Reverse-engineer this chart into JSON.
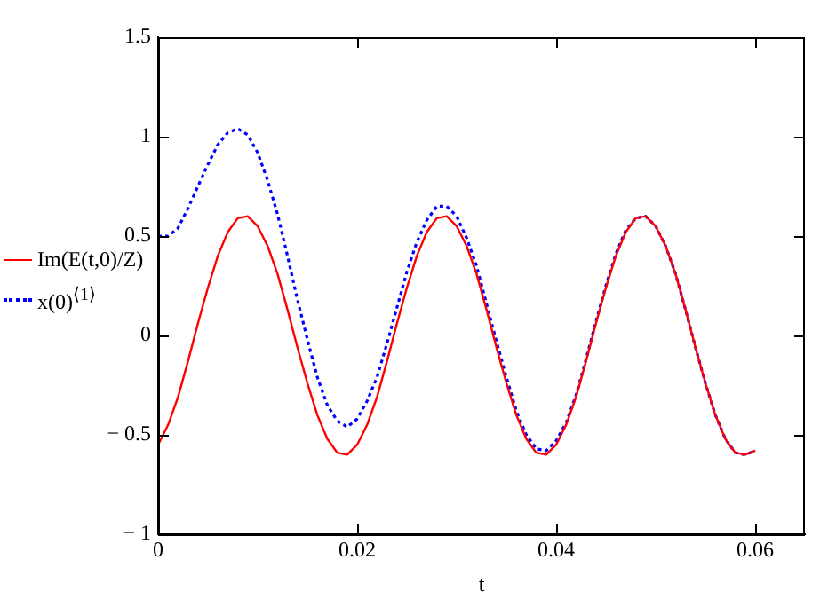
{
  "chart_data": {
    "type": "line",
    "xlabel": "t",
    "legend": "left",
    "marker": "none",
    "grid": false,
    "x": [
      0,
      0.001,
      0.002,
      0.003,
      0.004,
      0.005,
      0.006,
      0.007,
      0.008,
      0.009,
      0.01,
      0.011,
      0.012,
      0.013,
      0.014,
      0.015,
      0.016,
      0.017,
      0.018,
      0.019,
      0.02,
      0.021,
      0.022,
      0.023,
      0.024,
      0.025,
      0.026,
      0.027,
      0.028,
      0.029,
      0.03,
      0.031,
      0.032,
      0.033,
      0.034,
      0.035,
      0.036,
      0.037,
      0.038,
      0.039,
      0.04,
      0.041,
      0.042,
      0.043,
      0.044,
      0.045,
      0.046,
      0.047,
      0.048,
      0.049,
      0.05,
      0.051,
      0.052,
      0.053,
      0.054,
      0.055,
      0.056,
      0.057,
      0.058,
      0.059,
      0.06
    ],
    "xlim": [
      0,
      0.065
    ],
    "xticks": [
      0,
      0.02,
      0.04,
      0.06
    ],
    "ylim": [
      -1,
      1.5
    ],
    "yticks": [
      {
        "value": -1,
        "label": "− 1"
      },
      {
        "value": -0.5,
        "label": "− 0.5"
      },
      0,
      0.5,
      1,
      1.5
    ],
    "series": [
      {
        "name": "Im(E(t,0)/Z)",
        "color": "#ff0000",
        "line_style": "solid",
        "values": [
          -0.55,
          -0.45,
          -0.31,
          -0.13,
          0.06,
          0.24,
          0.4,
          0.52,
          0.59,
          0.6,
          0.55,
          0.45,
          0.31,
          0.13,
          -0.06,
          -0.24,
          -0.4,
          -0.52,
          -0.59,
          -0.6,
          -0.55,
          -0.45,
          -0.31,
          -0.13,
          0.06,
          0.24,
          0.4,
          0.52,
          0.59,
          0.6,
          0.55,
          0.45,
          0.31,
          0.13,
          -0.06,
          -0.24,
          -0.4,
          -0.52,
          -0.59,
          -0.6,
          -0.55,
          -0.45,
          -0.31,
          -0.13,
          0.06,
          0.24,
          0.4,
          0.52,
          0.59,
          0.6,
          0.55,
          0.45,
          0.31,
          0.13,
          -0.06,
          -0.24,
          -0.4,
          -0.52,
          -0.59,
          -0.6,
          -0.58
        ]
      },
      {
        "name": "x(0)$^{⟨1⟩}$",
        "color": "#0000ff",
        "line_style": "dotted",
        "values": [
          0.5,
          0.5,
          0.54,
          0.64,
          0.75,
          0.86,
          0.96,
          1.02,
          1.04,
          1.01,
          0.92,
          0.78,
          0.61,
          0.4,
          0.18,
          -0.02,
          -0.21,
          -0.35,
          -0.43,
          -0.46,
          -0.42,
          -0.33,
          -0.21,
          -0.04,
          0.14,
          0.32,
          0.47,
          0.58,
          0.65,
          0.65,
          0.6,
          0.49,
          0.35,
          0.16,
          -0.03,
          -0.21,
          -0.38,
          -0.5,
          -0.57,
          -0.58,
          -0.53,
          -0.44,
          -0.3,
          -0.12,
          0.07,
          0.25,
          0.41,
          0.53,
          0.59,
          0.6,
          0.55,
          0.45,
          0.31,
          0.13,
          -0.06,
          -0.24,
          -0.4,
          -0.52,
          -0.59,
          -0.6,
          -0.58
        ]
      }
    ]
  }
}
